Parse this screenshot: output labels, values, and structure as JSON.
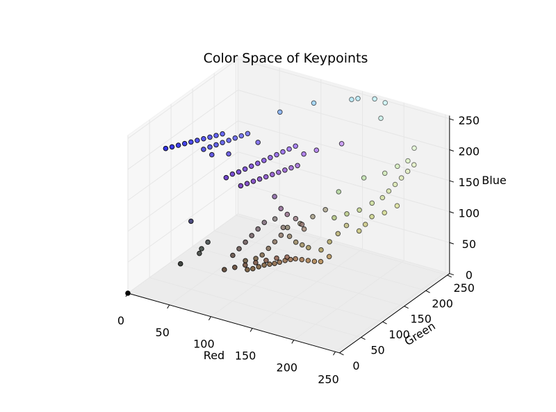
{
  "chart_data": {
    "type": "scatter",
    "title": "Color Space of Keypoints",
    "xlabel": "Red",
    "ylabel": "Green",
    "zlabel": "Blue",
    "xlim": [
      0,
      255
    ],
    "ylim": [
      0,
      255
    ],
    "zlim": [
      0,
      255
    ],
    "x_ticks": [
      0,
      50,
      100,
      150,
      200,
      250
    ],
    "y_ticks": [
      0,
      50,
      100,
      150,
      200,
      250
    ],
    "z_ticks": [
      0,
      50,
      100,
      150,
      200,
      250
    ],
    "grid": true,
    "point_color_rule": "each point is filled with its own RGB color",
    "points": [
      [
        0,
        0,
        0
      ],
      [
        40,
        45,
        40
      ],
      [
        55,
        60,
        55
      ],
      [
        55,
        65,
        60
      ],
      [
        60,
        70,
        70
      ],
      [
        50,
        50,
        110
      ],
      [
        30,
        30,
        230
      ],
      [
        35,
        35,
        232
      ],
      [
        40,
        40,
        234
      ],
      [
        45,
        45,
        236
      ],
      [
        50,
        50,
        238
      ],
      [
        55,
        55,
        240
      ],
      [
        60,
        60,
        242
      ],
      [
        65,
        65,
        244
      ],
      [
        70,
        70,
        246
      ],
      [
        75,
        75,
        248
      ],
      [
        60,
        60,
        225
      ],
      [
        65,
        65,
        228
      ],
      [
        70,
        70,
        231
      ],
      [
        75,
        75,
        234
      ],
      [
        80,
        80,
        237
      ],
      [
        85,
        85,
        240
      ],
      [
        90,
        90,
        243
      ],
      [
        95,
        95,
        246
      ],
      [
        70,
        60,
        220
      ],
      [
        85,
        70,
        222
      ],
      [
        110,
        90,
        240
      ],
      [
        95,
        45,
        200
      ],
      [
        100,
        50,
        205
      ],
      [
        105,
        55,
        208
      ],
      [
        110,
        60,
        212
      ],
      [
        115,
        65,
        216
      ],
      [
        120,
        70,
        220
      ],
      [
        125,
        75,
        224
      ],
      [
        130,
        80,
        228
      ],
      [
        135,
        85,
        232
      ],
      [
        140,
        90,
        236
      ],
      [
        145,
        95,
        240
      ],
      [
        150,
        100,
        244
      ],
      [
        110,
        50,
        190
      ],
      [
        115,
        55,
        193
      ],
      [
        120,
        60,
        196
      ],
      [
        125,
        65,
        199
      ],
      [
        130,
        70,
        202
      ],
      [
        135,
        75,
        205
      ],
      [
        140,
        80,
        208
      ],
      [
        145,
        85,
        211
      ],
      [
        150,
        90,
        214
      ],
      [
        155,
        95,
        217
      ],
      [
        160,
        100,
        235
      ],
      [
        170,
        110,
        240
      ],
      [
        190,
        130,
        248
      ],
      [
        100,
        160,
        250
      ],
      [
        120,
        200,
        252
      ],
      [
        150,
        230,
        254
      ],
      [
        155,
        235,
        255
      ],
      [
        170,
        245,
        255
      ],
      [
        180,
        250,
        250
      ],
      [
        180,
        240,
        230
      ],
      [
        130,
        90,
        160
      ],
      [
        135,
        95,
        140
      ],
      [
        140,
        100,
        130
      ],
      [
        145,
        110,
        120
      ],
      [
        150,
        115,
        110
      ],
      [
        150,
        120,
        100
      ],
      [
        100,
        80,
        50
      ],
      [
        110,
        85,
        55
      ],
      [
        115,
        90,
        60
      ],
      [
        120,
        95,
        70
      ],
      [
        125,
        100,
        80
      ],
      [
        130,
        105,
        90
      ],
      [
        130,
        110,
        100
      ],
      [
        135,
        115,
        85
      ],
      [
        140,
        120,
        75
      ],
      [
        145,
        125,
        70
      ],
      [
        150,
        130,
        65
      ],
      [
        160,
        140,
        60
      ],
      [
        165,
        150,
        70
      ],
      [
        170,
        160,
        80
      ],
      [
        175,
        170,
        90
      ],
      [
        185,
        180,
        80
      ],
      [
        190,
        185,
        90
      ],
      [
        105,
        75,
        40
      ],
      [
        110,
        78,
        42
      ],
      [
        115,
        82,
        45
      ],
      [
        120,
        85,
        48
      ],
      [
        125,
        88,
        50
      ],
      [
        130,
        90,
        52
      ],
      [
        135,
        92,
        55
      ],
      [
        140,
        95,
        58
      ],
      [
        145,
        98,
        60
      ],
      [
        150,
        100,
        62
      ],
      [
        155,
        105,
        60
      ],
      [
        160,
        110,
        58
      ],
      [
        165,
        115,
        56
      ],
      [
        170,
        120,
        55
      ],
      [
        175,
        130,
        60
      ],
      [
        90,
        70,
        60
      ],
      [
        95,
        75,
        70
      ],
      [
        100,
        80,
        80
      ],
      [
        105,
        85,
        90
      ],
      [
        110,
        90,
        100
      ],
      [
        115,
        95,
        110
      ],
      [
        85,
        60,
        40
      ],
      [
        95,
        65,
        45
      ],
      [
        105,
        70,
        50
      ],
      [
        115,
        75,
        55
      ],
      [
        125,
        80,
        60
      ],
      [
        135,
        85,
        65
      ],
      [
        145,
        90,
        68
      ],
      [
        120,
        110,
        110
      ],
      [
        130,
        120,
        95
      ],
      [
        140,
        130,
        100
      ],
      [
        150,
        140,
        110
      ],
      [
        160,
        150,
        120
      ],
      [
        155,
        180,
        90
      ],
      [
        165,
        190,
        95
      ],
      [
        175,
        200,
        100
      ],
      [
        185,
        210,
        110
      ],
      [
        195,
        215,
        120
      ],
      [
        200,
        220,
        130
      ],
      [
        205,
        225,
        140
      ],
      [
        210,
        230,
        150
      ],
      [
        215,
        235,
        160
      ],
      [
        220,
        240,
        170
      ],
      [
        210,
        220,
        110
      ],
      [
        200,
        210,
        100
      ],
      [
        190,
        200,
        95
      ],
      [
        150,
        200,
        120
      ],
      [
        170,
        220,
        140
      ],
      [
        190,
        230,
        150
      ],
      [
        200,
        240,
        160
      ],
      [
        210,
        245,
        170
      ],
      [
        215,
        250,
        190
      ]
    ]
  }
}
